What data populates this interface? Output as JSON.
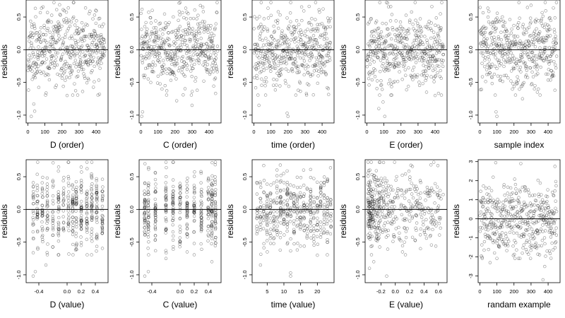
{
  "figure": {
    "background": "#ffffff",
    "point_color": "#000000",
    "point_opacity": 0.45
  },
  "chart_data": [
    {
      "type": "scatter",
      "xlabel": "D (order)",
      "ylabel": "residuals",
      "xlim": [
        -10,
        470
      ],
      "ylim": [
        -1.12,
        0.76
      ],
      "xticks": [
        0,
        100,
        200,
        300,
        400
      ],
      "xtick_labels": [
        "0",
        "100",
        "200",
        "300",
        "400"
      ],
      "yticks": [
        -1.0,
        -0.5,
        0.0,
        0.5
      ],
      "ytick_labels": [
        "-1.0",
        "-0.5",
        "0.0",
        "0.5"
      ],
      "reference_line_y": 0,
      "n_points": 450,
      "x_pattern": "index",
      "y_spread": 0.28,
      "seed": 11,
      "outliers": [
        [
          20,
          -1.02
        ],
        [
          35,
          -0.83
        ],
        [
          40,
          -0.94
        ],
        [
          230,
          -0.7
        ],
        [
          420,
          -0.68
        ]
      ]
    },
    {
      "type": "scatter",
      "xlabel": "C (order)",
      "ylabel": "residuals",
      "xlim": [
        -10,
        470
      ],
      "ylim": [
        -1.12,
        0.76
      ],
      "xticks": [
        0,
        100,
        200,
        300,
        400
      ],
      "xtick_labels": [
        "0",
        "100",
        "200",
        "300",
        "400"
      ],
      "yticks": [
        -1.0,
        -0.5,
        0.0,
        0.5
      ],
      "ytick_labels": [
        "-1.0",
        "-0.5",
        "0.0",
        "0.5"
      ],
      "reference_line_y": 0,
      "n_points": 450,
      "x_pattern": "index",
      "y_spread": 0.28,
      "seed": 23,
      "outliers": [
        [
          5,
          -1.02
        ],
        [
          10,
          -0.95
        ],
        [
          210,
          -0.78
        ],
        [
          300,
          -0.85
        ],
        [
          330,
          -0.62
        ]
      ]
    },
    {
      "type": "scatter",
      "xlabel": "time (order)",
      "ylabel": "residuals",
      "xlim": [
        -10,
        470
      ],
      "ylim": [
        -1.12,
        0.76
      ],
      "xticks": [
        0,
        100,
        200,
        300,
        400
      ],
      "xtick_labels": [
        "0",
        "100",
        "200",
        "300",
        "400"
      ],
      "yticks": [
        -1.0,
        -0.5,
        0.0,
        0.5
      ],
      "ytick_labels": [
        "-1.0",
        "-0.5",
        "0.0",
        "0.5"
      ],
      "reference_line_y": 0,
      "n_points": 450,
      "x_pattern": "index",
      "y_spread": 0.28,
      "seed": 37,
      "outliers": [
        [
          30,
          -0.85
        ],
        [
          195,
          -0.97
        ],
        [
          200,
          -1.02
        ],
        [
          260,
          -0.62
        ],
        [
          430,
          -0.58
        ]
      ]
    },
    {
      "type": "scatter",
      "xlabel": "E (order)",
      "ylabel": "residuals",
      "xlim": [
        -10,
        470
      ],
      "ylim": [
        -1.12,
        0.76
      ],
      "xticks": [
        0,
        100,
        200,
        300,
        400
      ],
      "xtick_labels": [
        "0",
        "100",
        "200",
        "300",
        "400"
      ],
      "yticks": [
        -1.0,
        -0.5,
        0.0,
        0.5
      ],
      "ytick_labels": [
        "-1.0",
        "-0.5",
        "0.0",
        "0.5"
      ],
      "reference_line_y": 0,
      "n_points": 450,
      "x_pattern": "index",
      "y_spread": 0.28,
      "seed": 41,
      "outliers": [
        [
          70,
          -0.9
        ],
        [
          95,
          -0.8
        ],
        [
          105,
          -1.02
        ],
        [
          350,
          -0.65
        ],
        [
          400,
          -0.7
        ]
      ]
    },
    {
      "type": "scatter",
      "xlabel": "sample index",
      "ylabel": "residuals",
      "xlim": [
        -10,
        470
      ],
      "ylim": [
        -1.12,
        0.76
      ],
      "xticks": [
        0,
        100,
        200,
        300,
        400
      ],
      "xtick_labels": [
        "0",
        "100",
        "200",
        "300",
        "400"
      ],
      "yticks": [
        -1.0,
        -0.5,
        0.0,
        0.5
      ],
      "ytick_labels": [
        "-1.0",
        "-0.5",
        "0.0",
        "0.5"
      ],
      "reference_line_y": 0,
      "n_points": 450,
      "x_pattern": "index",
      "y_spread": 0.28,
      "seed": 53,
      "outliers": [
        [
          95,
          -0.95
        ],
        [
          100,
          -1.02
        ],
        [
          250,
          -0.75
        ],
        [
          320,
          -0.6
        ],
        [
          440,
          -0.62
        ]
      ]
    },
    {
      "type": "scatter",
      "xlabel": "D (value)",
      "ylabel": "residuals",
      "xlim": [
        -0.58,
        0.58
      ],
      "ylim": [
        -1.12,
        0.76
      ],
      "xticks": [
        -0.4,
        0.0,
        0.2,
        0.4
      ],
      "xtick_labels": [
        "-0.4",
        "0.0",
        "0.2",
        "0.4"
      ],
      "yticks": [
        -1.0,
        -0.5,
        0.0,
        0.5
      ],
      "ytick_labels": [
        "-1.0",
        "-0.5",
        "0.0",
        "0.5"
      ],
      "reference_line_y": 0,
      "n_points": 450,
      "x_pattern": "clustered",
      "x_levels": [
        -0.48,
        -0.42,
        -0.35,
        -0.28,
        -0.2,
        -0.12,
        -0.05,
        0.02,
        0.08,
        0.13,
        0.2,
        0.28,
        0.35,
        0.42,
        0.5
      ],
      "y_spread": 0.28,
      "seed": 67,
      "outliers": [
        [
          -0.48,
          -1.02
        ],
        [
          -0.45,
          -0.95
        ],
        [
          0.12,
          -0.62
        ],
        [
          0.2,
          -0.55
        ],
        [
          -0.3,
          -0.85
        ]
      ]
    },
    {
      "type": "scatter",
      "xlabel": "C (value)",
      "ylabel": "residuals",
      "xlim": [
        -0.58,
        0.58
      ],
      "ylim": [
        -1.12,
        0.76
      ],
      "xticks": [
        -0.4,
        0.0,
        0.2,
        0.4
      ],
      "xtick_labels": [
        "-0.4",
        "0.0",
        "0.2",
        "0.4"
      ],
      "yticks": [
        -1.0,
        -0.5,
        0.0,
        0.5
      ],
      "ytick_labels": [
        "-1.0",
        "-0.5",
        "0.0",
        "0.5"
      ],
      "reference_line_y": 0,
      "n_points": 450,
      "x_pattern": "clustered",
      "x_levels": [
        -0.5,
        -0.45,
        -0.35,
        -0.2,
        -0.1,
        0.0,
        0.1,
        0.2,
        0.3,
        0.4,
        0.45,
        0.5
      ],
      "y_spread": 0.28,
      "seed": 79,
      "outliers": [
        [
          -0.5,
          -1.02
        ],
        [
          -0.45,
          -0.95
        ],
        [
          0.1,
          -0.65
        ],
        [
          0.45,
          -0.8
        ],
        [
          -0.2,
          -0.75
        ]
      ]
    },
    {
      "type": "scatter",
      "xlabel": "time (value)",
      "ylabel": "residuals",
      "xlim": [
        0.5,
        25
      ],
      "ylim": [
        -1.12,
        0.76
      ],
      "xticks": [
        5,
        10,
        15,
        20
      ],
      "xtick_labels": [
        "5",
        "10",
        "15",
        "20"
      ],
      "yticks": [
        -1.0,
        -0.5,
        0.0,
        0.5
      ],
      "ytick_labels": [
        "-1.0",
        "-0.5",
        "0.0",
        "0.5"
      ],
      "reference_line_y": 0,
      "n_points": 450,
      "x_pattern": "clustered",
      "x_levels": [
        2,
        3,
        4,
        5,
        6,
        7,
        8,
        9,
        10,
        11,
        12,
        13,
        14,
        15,
        16,
        17,
        18,
        19,
        20,
        21,
        22,
        23,
        24
      ],
      "y_spread": 0.28,
      "seed": 83,
      "outliers": [
        [
          12,
          -1.02
        ],
        [
          12,
          -0.97
        ],
        [
          3,
          -0.85
        ],
        [
          20,
          -0.7
        ],
        [
          14,
          -0.62
        ]
      ]
    },
    {
      "type": "scatter",
      "xlabel": "E (value)",
      "ylabel": "residuals",
      "xlim": [
        -0.42,
        0.72
      ],
      "ylim": [
        -1.12,
        0.76
      ],
      "xticks": [
        -0.2,
        0.0,
        0.2,
        0.4,
        0.6
      ],
      "xtick_labels": [
        "-0.2",
        "0.0",
        "0.2",
        "0.4",
        "0.6"
      ],
      "yticks": [
        -1.0,
        -0.5,
        0.0,
        0.5
      ],
      "ytick_labels": [
        "-1.0",
        "-0.5",
        "0.0",
        "0.5"
      ],
      "reference_line_y": 0,
      "n_points": 450,
      "x_pattern": "skewed",
      "y_spread": 0.28,
      "seed": 97,
      "outliers": [
        [
          -0.12,
          -1.02
        ],
        [
          -0.36,
          -0.9
        ],
        [
          -0.3,
          -0.8
        ],
        [
          0.1,
          -0.65
        ],
        [
          0.35,
          -0.6
        ]
      ]
    },
    {
      "type": "scatter",
      "xlabel": "randam example",
      "ylabel": "residuals",
      "xlim": [
        -10,
        470
      ],
      "ylim": [
        -3.35,
        3.1
      ],
      "xticks": [
        0,
        100,
        200,
        300,
        400
      ],
      "xtick_labels": [
        "0",
        "100",
        "200",
        "300",
        "400"
      ],
      "yticks": [
        -3,
        -2,
        -1,
        0,
        1,
        2,
        3
      ],
      "ytick_labels": [
        "-3",
        "-2",
        "-1",
        "0",
        "1",
        "2",
        "3"
      ],
      "reference_line_y": 0,
      "n_points": 450,
      "x_pattern": "index",
      "y_spread": 0.95,
      "seed": 101,
      "outliers": [
        [
          370,
          -3.2
        ],
        [
          60,
          -2.3
        ],
        [
          380,
          -2.5
        ],
        [
          440,
          2.75
        ],
        [
          240,
          2.9
        ]
      ]
    }
  ]
}
